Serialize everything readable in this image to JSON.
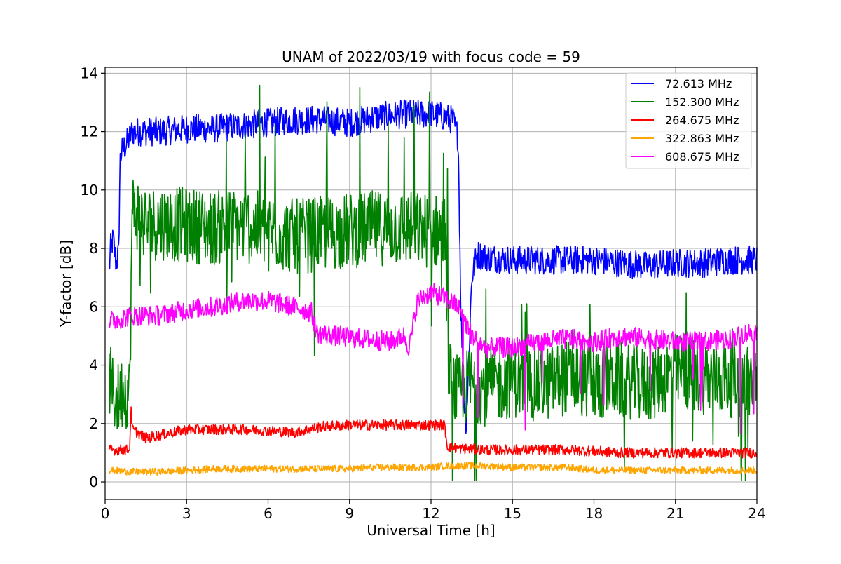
{
  "chart_data": {
    "type": "line",
    "title": "UNAM of 2022/03/19 with focus code = 59",
    "xlabel": "Universal Time [h]",
    "ylabel": "Y-factor [dB]",
    "xlim": [
      0,
      24
    ],
    "ylim": [
      -0.6,
      14.2
    ],
    "xticks": [
      0,
      3,
      6,
      9,
      12,
      15,
      18,
      21,
      24
    ],
    "yticks": [
      0,
      2,
      4,
      6,
      8,
      10,
      12,
      14
    ],
    "grid": true,
    "legend_position": "top-right",
    "series": [
      {
        "name": " 72.613 MHz",
        "color": "#0000ff",
        "noise": 0.5,
        "x": [
          0.15,
          0.2,
          0.3,
          0.4,
          0.5,
          0.55,
          0.6,
          0.8,
          1.0,
          1.5,
          2.0,
          3.0,
          4.0,
          5.0,
          6.0,
          7.0,
          8.0,
          9.0,
          10.0,
          11.0,
          12.0,
          12.5,
          12.8,
          13.0,
          13.1,
          13.2,
          13.3,
          13.5,
          13.7,
          14.0,
          15.0,
          16.0,
          17.0,
          18.0,
          19.0,
          20.0,
          21.0,
          22.0,
          23.0,
          24.0
        ],
        "values": [
          7.2,
          8.0,
          8.3,
          7.5,
          7.8,
          11.0,
          11.3,
          11.6,
          12.0,
          12.0,
          12.0,
          12.1,
          12.1,
          12.2,
          12.3,
          12.4,
          12.4,
          12.3,
          12.5,
          12.6,
          12.6,
          12.5,
          12.4,
          11.8,
          6.0,
          3.0,
          2.0,
          7.0,
          7.8,
          7.7,
          7.6,
          7.6,
          7.6,
          7.6,
          7.5,
          7.4,
          7.5,
          7.5,
          7.6,
          7.6
        ]
      },
      {
        "name": "152.300 MHz",
        "color": "#008000",
        "noise": 1.3,
        "x": [
          0.15,
          0.3,
          0.5,
          0.7,
          0.9,
          1.0,
          1.2,
          1.5,
          2.0,
          3.0,
          4.0,
          5.0,
          6.0,
          7.0,
          8.0,
          9.0,
          10.0,
          11.0,
          12.0,
          12.5,
          12.7,
          13.0,
          13.5,
          14.0,
          15.0,
          16.0,
          17.0,
          18.0,
          19.0,
          20.0,
          21.0,
          22.0,
          23.0,
          24.0
        ],
        "values": [
          3.5,
          3.0,
          2.8,
          3.2,
          3.0,
          9.3,
          9.2,
          8.8,
          8.9,
          8.8,
          8.7,
          8.8,
          8.6,
          8.4,
          8.5,
          8.6,
          8.7,
          8.7,
          8.6,
          8.6,
          3.5,
          3.0,
          3.4,
          3.2,
          3.5,
          3.3,
          3.6,
          3.4,
          3.5,
          3.3,
          3.8,
          3.6,
          3.5,
          3.4
        ]
      },
      {
        "name": "264.675 MHz",
        "color": "#ff0000",
        "noise": 0.18,
        "x": [
          0.15,
          0.5,
          0.9,
          0.95,
          1.0,
          1.5,
          2.0,
          3.0,
          4.0,
          5.0,
          6.0,
          7.0,
          8.0,
          9.0,
          10.0,
          11.0,
          12.0,
          12.5,
          12.6,
          13.0,
          14.0,
          15.0,
          16.0,
          17.0,
          18.0,
          19.0,
          20.0,
          21.0,
          22.0,
          23.0,
          24.0
        ],
        "values": [
          1.1,
          1.1,
          1.1,
          2.5,
          1.8,
          1.5,
          1.6,
          1.8,
          1.8,
          1.8,
          1.75,
          1.7,
          1.9,
          1.95,
          1.95,
          1.95,
          1.95,
          1.95,
          1.2,
          1.15,
          1.1,
          1.1,
          1.1,
          1.1,
          1.05,
          1.0,
          1.0,
          1.0,
          1.0,
          1.0,
          1.0
        ]
      },
      {
        "name": "322.863 MHz",
        "color": "#ffa500",
        "noise": 0.12,
        "x": [
          0.15,
          1.0,
          2.0,
          3.0,
          4.0,
          5.0,
          6.0,
          7.0,
          8.0,
          9.0,
          10.0,
          11.0,
          12.0,
          12.5,
          13.0,
          14.0,
          15.0,
          16.0,
          17.0,
          18.0,
          19.0,
          20.0,
          21.0,
          22.0,
          23.0,
          24.0
        ],
        "values": [
          0.4,
          0.35,
          0.35,
          0.4,
          0.45,
          0.45,
          0.45,
          0.45,
          0.45,
          0.45,
          0.5,
          0.5,
          0.5,
          0.55,
          0.55,
          0.55,
          0.5,
          0.5,
          0.5,
          0.4,
          0.4,
          0.4,
          0.4,
          0.4,
          0.4,
          0.4
        ]
      },
      {
        "name": "608.675 MHz",
        "color": "#ff00ff",
        "noise": 0.35,
        "x": [
          0.15,
          1.0,
          2.0,
          3.0,
          4.0,
          5.0,
          6.0,
          7.0,
          7.6,
          7.8,
          8.5,
          9.5,
          10.5,
          11.0,
          11.2,
          11.5,
          12.0,
          12.5,
          13.0,
          13.5,
          14.0,
          15.0,
          16.0,
          17.0,
          18.0,
          19.0,
          20.0,
          21.0,
          22.0,
          23.0,
          24.0
        ],
        "values": [
          5.5,
          5.7,
          5.7,
          5.9,
          6.0,
          6.2,
          6.2,
          6.0,
          5.8,
          5.1,
          5.0,
          4.9,
          4.8,
          5.0,
          4.6,
          6.2,
          6.5,
          6.3,
          6.0,
          5.0,
          4.6,
          4.6,
          4.8,
          4.9,
          4.8,
          5.0,
          4.9,
          4.8,
          4.8,
          4.9,
          5.2
        ]
      }
    ]
  }
}
